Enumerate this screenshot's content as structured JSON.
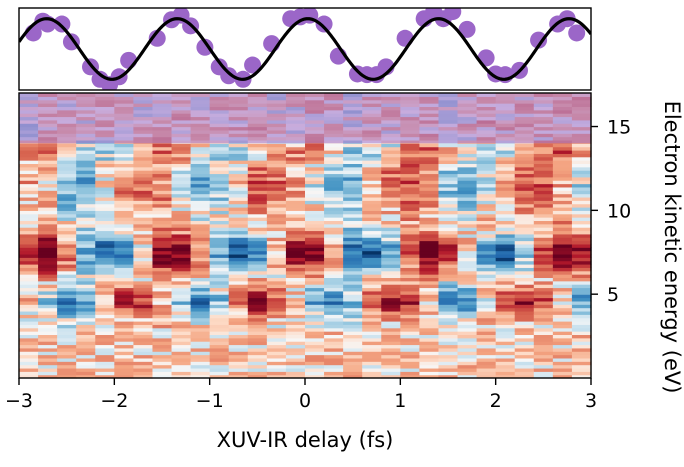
{
  "chart_data": [
    {
      "type": "scatter",
      "title": "",
      "xlabel": "XUV-IR delay (fs)",
      "ylabel": "",
      "xlim": [
        -3,
        3
      ],
      "ylim": [
        -1.15,
        1.15
      ],
      "marker_color": "#9b66c8",
      "fit_color": "#000000",
      "fit": {
        "amplitude": 0.85,
        "period_fs": 1.37,
        "phase_fs": 0.03
      },
      "points": {
        "x": [
          -2.85,
          -2.75,
          -2.7,
          -2.55,
          -2.45,
          -2.25,
          -2.15,
          -2.05,
          -1.95,
          -1.85,
          -1.55,
          -1.4,
          -1.3,
          -1.2,
          -1.05,
          -0.9,
          -0.8,
          -0.65,
          -0.55,
          -0.35,
          -0.15,
          -0.05,
          0.05,
          0.2,
          0.35,
          0.55,
          0.65,
          0.75,
          0.85,
          1.05,
          1.25,
          1.35,
          1.45,
          1.55,
          1.7,
          1.9,
          2.0,
          2.1,
          2.25,
          2.45,
          2.65,
          2.75,
          2.85
        ],
        "y": [
          0.45,
          0.78,
          0.7,
          0.7,
          0.2,
          -0.5,
          -0.85,
          -1.0,
          -0.78,
          -0.32,
          0.3,
          0.82,
          0.95,
          0.65,
          0.05,
          -0.5,
          -0.75,
          -0.85,
          -0.45,
          0.15,
          0.85,
          0.9,
          0.95,
          0.7,
          -0.2,
          -0.7,
          -0.72,
          -0.72,
          -0.5,
          0.3,
          0.85,
          1.05,
          0.85,
          1.05,
          0.55,
          -0.25,
          -0.7,
          -0.72,
          -0.6,
          0.25,
          0.7,
          0.85,
          0.45
        ]
      }
    },
    {
      "type": "heatmap",
      "title": "",
      "xlabel": "XUV-IR delay (fs)",
      "ylabel": "Electron kinetic energy (eV)",
      "xlim": [
        -3,
        3
      ],
      "ylim": [
        0,
        17
      ],
      "x_ticks": [
        -3,
        -2,
        -1,
        0,
        1,
        2,
        3
      ],
      "x_tick_labels": [
        "−3",
        "−2",
        "−1",
        "0",
        "1",
        "2",
        "3"
      ],
      "y_ticks": [
        5,
        10,
        15
      ],
      "y_tick_labels": [
        "5",
        "10",
        "15"
      ],
      "colormap": "RdBu_r (red positive, blue negative)",
      "overlay_band": {
        "energy_range": [
          14,
          17
        ],
        "tint": "#a070c8"
      },
      "time_bins": 30,
      "energy_bins": 85,
      "oscillation": {
        "period_fs": 1.37,
        "main_band_eV": [
          6.5,
          8.5
        ],
        "secondary_band_eV": [
          3.8,
          5.5
        ]
      }
    }
  ]
}
